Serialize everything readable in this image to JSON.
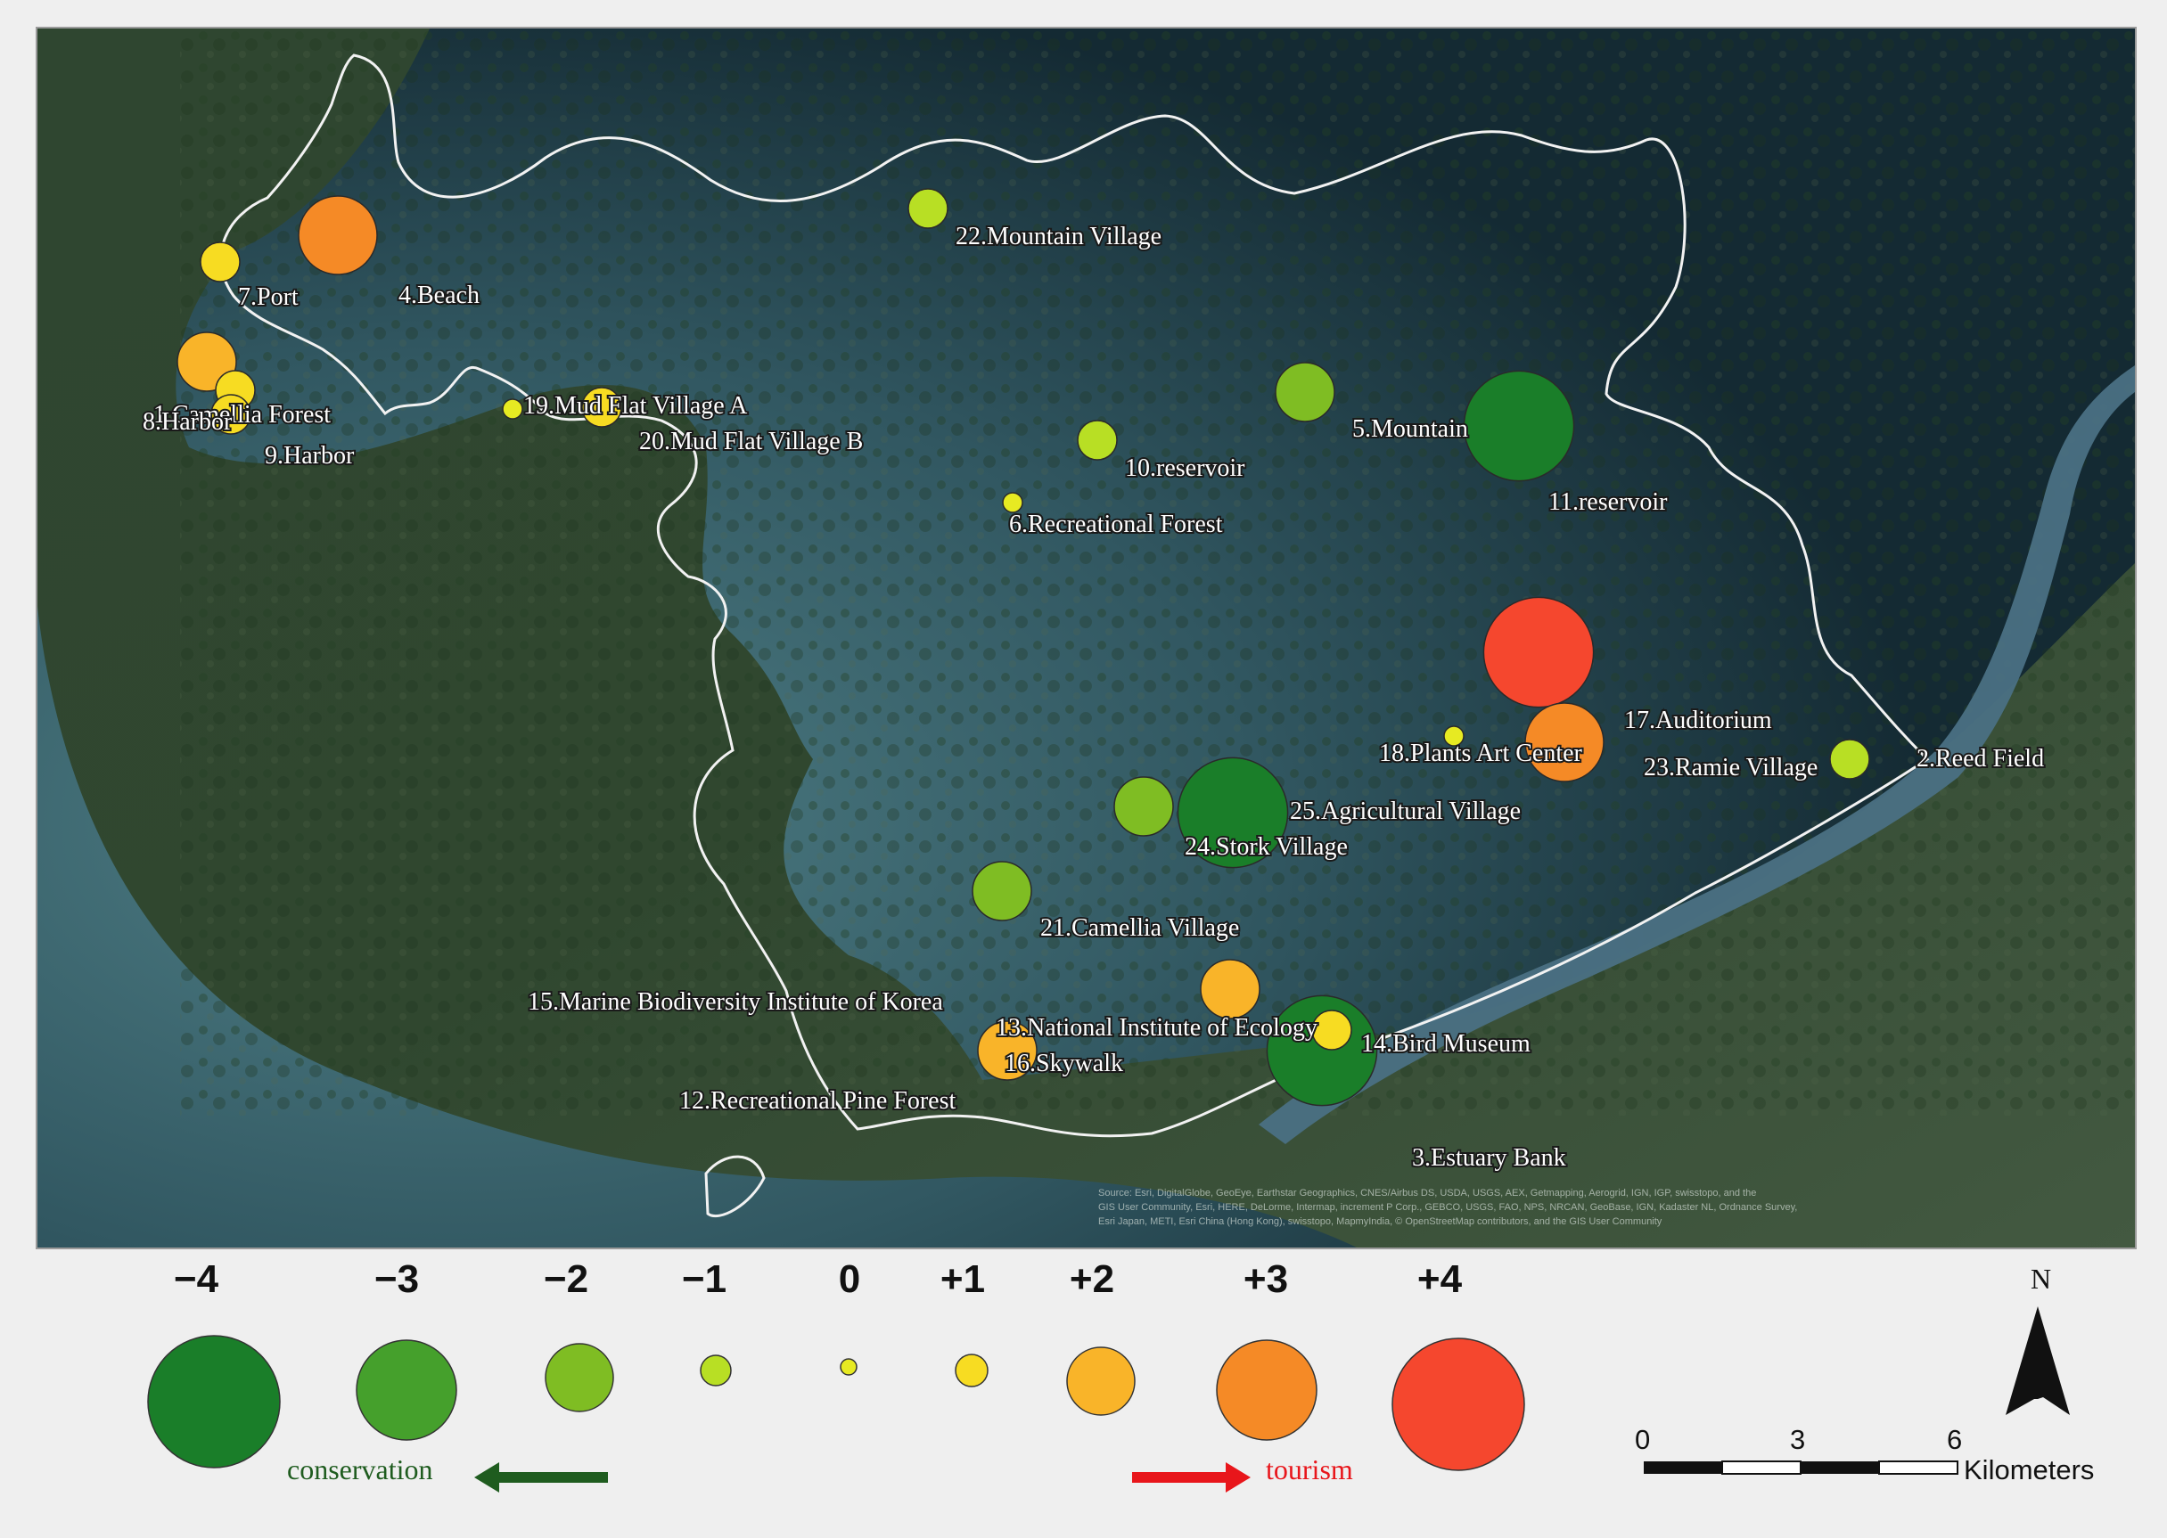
{
  "map": {
    "sites": [
      {
        "label": "1.Camellia Forest",
        "score": 1
      },
      {
        "label": "2.Reed Field",
        "score": -1
      },
      {
        "label": "3.Estuary Bank",
        "score": 4
      },
      {
        "label": "4.Beach",
        "score": 3
      },
      {
        "label": "5.Mountain",
        "score": -4
      },
      {
        "label": "6.Recreational Forest",
        "score": 0
      },
      {
        "label": "7.Port",
        "score": 1
      },
      {
        "label": "8.Harbor",
        "score": 2
      },
      {
        "label": "9.Harbor",
        "score": 1
      },
      {
        "label": "10.reservoir",
        "score": -1
      },
      {
        "label": "11.reservoir",
        "score": -2
      },
      {
        "label": "12.Recreational Pine Forest",
        "score": 0
      },
      {
        "label": "13.National Institute of Ecology",
        "score": 2
      },
      {
        "label": "14.Bird Museum",
        "score": -4
      },
      {
        "label": "15.Marine Biodiversity Institute of Korea",
        "score": 2
      },
      {
        "label": "16.Skywalk",
        "score": 2
      },
      {
        "label": "17.Auditorium",
        "score": 3
      },
      {
        "label": "18.Plants Art Center",
        "score": 0
      },
      {
        "label": "19.Mud Flat Village A",
        "score": 0
      },
      {
        "label": "20.Mud Flat Village B",
        "score": 1
      },
      {
        "label": "21.Camellia Village",
        "score": -2
      },
      {
        "label": "22.Mountain Village",
        "score": -1
      },
      {
        "label": "23.Ramie Village",
        "score": -4
      },
      {
        "label": "24.Stork Village",
        "score": -4
      },
      {
        "label": "25.Agricultural Village",
        "score": -2
      }
    ],
    "attribution_lines": [
      "Source: Esri, DigitalGlobe, GeoEye, Earthstar Geographics, CNES/Airbus DS, USDA, USGS, AEX, Getmapping, Aerogrid, IGN, IGP, swisstopo, and the",
      "GIS User Community, Esri, HERE, DeLorme, Intermap, increment P Corp., GEBCO, USGS, FAO, NPS, NRCAN, GeoBase, IGN, Kadaster NL, Ordnance Survey,",
      "Esri Japan, METI, Esri China (Hong Kong), swisstopo, MapmyIndia, © OpenStreetMap contributors, and the GIS User Community"
    ]
  },
  "legend": {
    "items": [
      {
        "label": "−4",
        "score": -4,
        "color": "#1a7e29"
      },
      {
        "label": "−3",
        "score": -3,
        "color": "#45a02c"
      },
      {
        "label": "−2",
        "score": -2,
        "color": "#7fbd23"
      },
      {
        "label": "−1",
        "score": -1,
        "color": "#b8df24"
      },
      {
        "label": "0",
        "score": 0,
        "color": "#e7ea22"
      },
      {
        "label": "+1",
        "score": 1,
        "color": "#f7dc22"
      },
      {
        "label": "+2",
        "score": 2,
        "color": "#f9b429"
      },
      {
        "label": "+3",
        "score": 3,
        "color": "#f58a26"
      },
      {
        "label": "+4",
        "score": 4,
        "color": "#f5472e"
      }
    ],
    "conservation_label": "conservation",
    "tourism_label": "tourism",
    "conservation_color": "#1f5c1f",
    "tourism_color": "#e8161b"
  },
  "scale_bar": {
    "ticks": [
      "0",
      "3",
      "6"
    ],
    "unit": "Kilometers"
  },
  "north_arrow": {
    "letter": "N"
  }
}
